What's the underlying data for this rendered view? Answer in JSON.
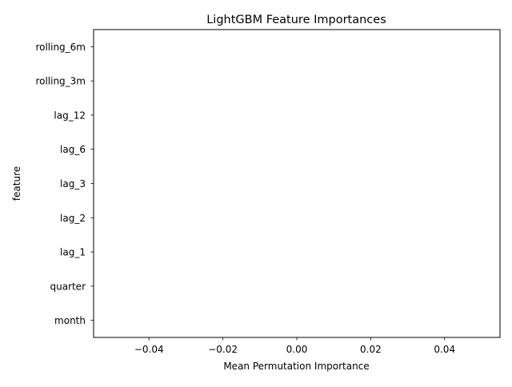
{
  "chart_data": {
    "type": "bar",
    "orientation": "horizontal",
    "title": "LightGBM Feature Importances",
    "xlabel": "Mean Permutation Importance",
    "ylabel": "feature",
    "categories": [
      "month",
      "quarter",
      "lag_1",
      "lag_2",
      "lag_3",
      "lag_6",
      "lag_12",
      "rolling_3m",
      "rolling_6m"
    ],
    "values": [
      0,
      0,
      0,
      0,
      0,
      0,
      0,
      0,
      0
    ],
    "xlim": [
      -0.055,
      0.055
    ],
    "xticks": [
      -0.04,
      -0.02,
      0.0,
      0.02,
      0.04
    ],
    "xtick_labels": [
      "−0.04",
      "−0.02",
      "0.00",
      "0.02",
      "0.04"
    ],
    "grid": false,
    "legend": "none"
  }
}
